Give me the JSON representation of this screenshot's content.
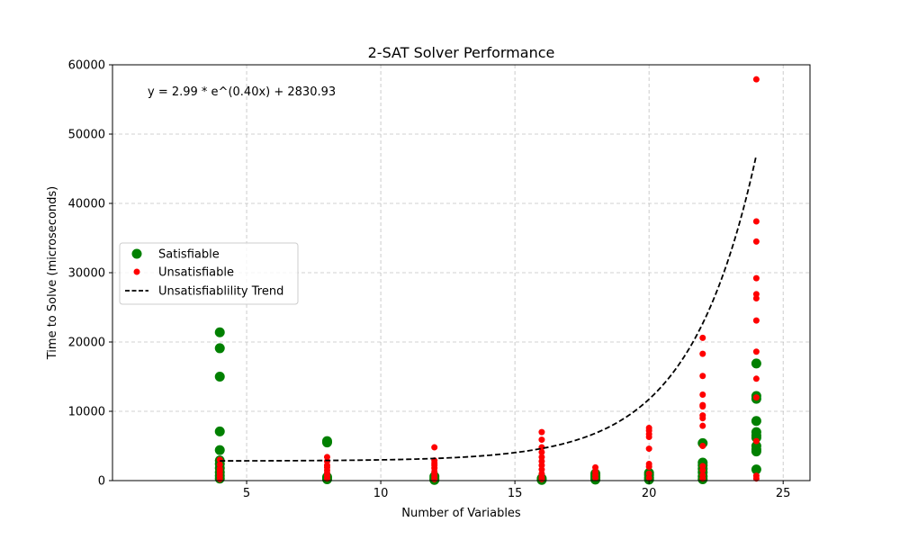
{
  "chart_data": {
    "type": "scatter",
    "title": "2-SAT Solver Performance",
    "xlabel": "Number of Variables",
    "ylabel": "Time to Solve (microseconds)",
    "xlim": [
      0,
      26
    ],
    "ylim": [
      0,
      60000
    ],
    "x_ticks": [
      5,
      10,
      15,
      20,
      25
    ],
    "y_ticks": [
      0,
      10000,
      20000,
      30000,
      40000,
      50000,
      60000
    ],
    "grid": true,
    "legend_position": "center-left",
    "annotation": "y = 2.99 * e^(0.40x) + 2830.93",
    "series": [
      {
        "name": "Satisfiable",
        "color": "#008000",
        "points": [
          [
            4,
            21400
          ],
          [
            4,
            19100
          ],
          [
            4,
            15000
          ],
          [
            4,
            7100
          ],
          [
            4,
            4400
          ],
          [
            4,
            2900
          ],
          [
            4,
            2400
          ],
          [
            4,
            1800
          ],
          [
            4,
            1200
          ],
          [
            4,
            700
          ],
          [
            4,
            300
          ],
          [
            8,
            5700
          ],
          [
            8,
            5500
          ],
          [
            8,
            500
          ],
          [
            8,
            200
          ],
          [
            12,
            600
          ],
          [
            12,
            300
          ],
          [
            12,
            100
          ],
          [
            16,
            300
          ],
          [
            16,
            100
          ],
          [
            18,
            1000
          ],
          [
            18,
            700
          ],
          [
            18,
            400
          ],
          [
            18,
            150
          ],
          [
            20,
            1100
          ],
          [
            20,
            800
          ],
          [
            20,
            400
          ],
          [
            20,
            150
          ],
          [
            22,
            5400
          ],
          [
            22,
            2600
          ],
          [
            22,
            2200
          ],
          [
            22,
            1700
          ],
          [
            22,
            1200
          ],
          [
            22,
            600
          ],
          [
            22,
            200
          ],
          [
            24,
            16900
          ],
          [
            24,
            12200
          ],
          [
            24,
            11800
          ],
          [
            24,
            8600
          ],
          [
            24,
            7000
          ],
          [
            24,
            6500
          ],
          [
            24,
            6200
          ],
          [
            24,
            5000
          ],
          [
            24,
            4500
          ],
          [
            24,
            4200
          ],
          [
            24,
            1600
          ]
        ]
      },
      {
        "name": "Unsatisfiable",
        "color": "#ff0000",
        "points": [
          [
            4,
            3000
          ],
          [
            4,
            2300
          ],
          [
            4,
            1700
          ],
          [
            4,
            1400
          ],
          [
            4,
            1000
          ],
          [
            4,
            600
          ],
          [
            4,
            200
          ],
          [
            8,
            3400
          ],
          [
            8,
            2800
          ],
          [
            8,
            2200
          ],
          [
            8,
            1900
          ],
          [
            8,
            1500
          ],
          [
            8,
            1100
          ],
          [
            8,
            700
          ],
          [
            8,
            300
          ],
          [
            12,
            4800
          ],
          [
            12,
            2900
          ],
          [
            12,
            2500
          ],
          [
            12,
            2200
          ],
          [
            12,
            1800
          ],
          [
            12,
            1300
          ],
          [
            12,
            900
          ],
          [
            12,
            500
          ],
          [
            12,
            200
          ],
          [
            16,
            7000
          ],
          [
            16,
            5900
          ],
          [
            16,
            4800
          ],
          [
            16,
            4100
          ],
          [
            16,
            3400
          ],
          [
            16,
            2800
          ],
          [
            16,
            2200
          ],
          [
            16,
            1600
          ],
          [
            16,
            1000
          ],
          [
            16,
            500
          ],
          [
            16,
            200
          ],
          [
            18,
            1900
          ],
          [
            18,
            1300
          ],
          [
            18,
            800
          ],
          [
            18,
            400
          ],
          [
            20,
            7600
          ],
          [
            20,
            7200
          ],
          [
            20,
            6700
          ],
          [
            20,
            6300
          ],
          [
            20,
            4600
          ],
          [
            20,
            2400
          ],
          [
            20,
            2000
          ],
          [
            20,
            1000
          ],
          [
            20,
            400
          ],
          [
            22,
            20600
          ],
          [
            22,
            18300
          ],
          [
            22,
            15100
          ],
          [
            22,
            12400
          ],
          [
            22,
            10900
          ],
          [
            22,
            10700
          ],
          [
            22,
            9400
          ],
          [
            22,
            9000
          ],
          [
            22,
            7900
          ],
          [
            22,
            5000
          ],
          [
            22,
            2100
          ],
          [
            22,
            1500
          ],
          [
            22,
            800
          ],
          [
            22,
            300
          ],
          [
            24,
            57900
          ],
          [
            24,
            37400
          ],
          [
            24,
            34500
          ],
          [
            24,
            29200
          ],
          [
            24,
            26900
          ],
          [
            24,
            26300
          ],
          [
            24,
            23100
          ],
          [
            24,
            18600
          ],
          [
            24,
            14700
          ],
          [
            24,
            12000
          ],
          [
            24,
            5700
          ],
          [
            24,
            700
          ],
          [
            24,
            300
          ]
        ]
      },
      {
        "name": "Unsatisfiablility Trend",
        "color": "#000000",
        "line_style": "dashed",
        "fit": {
          "a": 2.99,
          "b": 0.4,
          "c": 2830.93
        },
        "x_range": [
          4,
          24
        ]
      }
    ]
  }
}
